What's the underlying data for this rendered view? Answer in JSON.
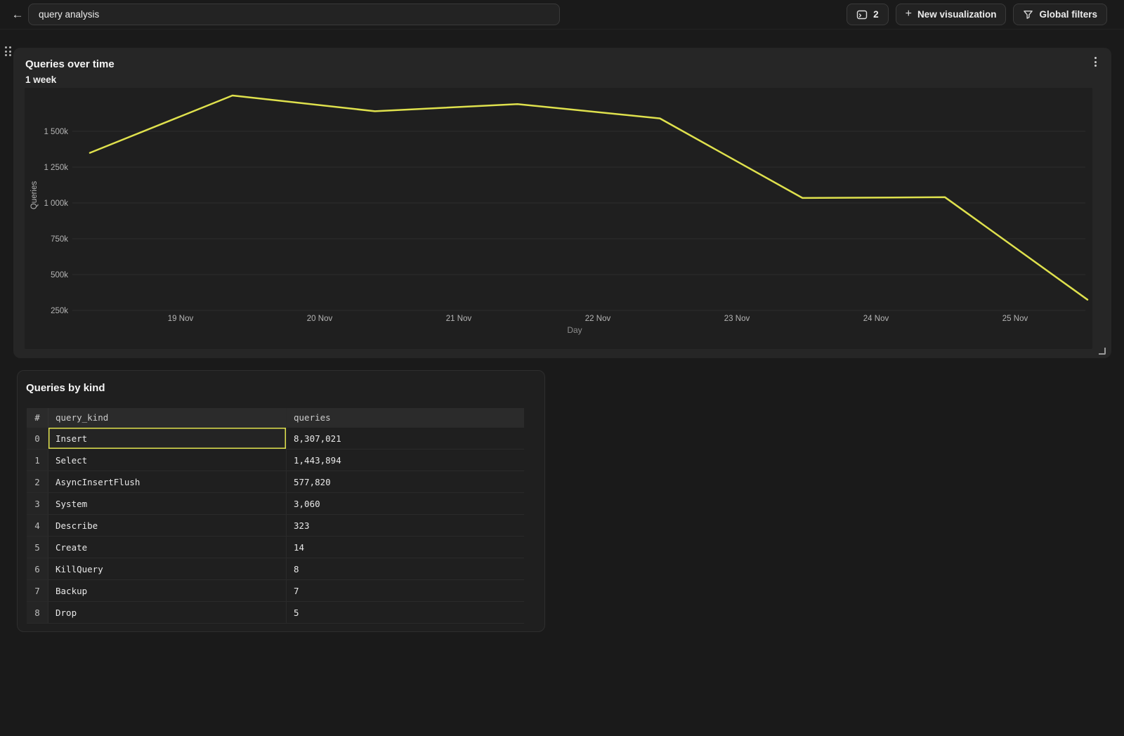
{
  "topbar": {
    "back_icon": "←",
    "title_value": "query analysis",
    "pages_count": "2",
    "new_visualization_label": "New visualization",
    "plus_glyph": "+",
    "global_filters_label": "Global filters"
  },
  "colors": {
    "accent_line": "#dfe14d",
    "page_bg": "#1a1a1a",
    "panel_bg": "#262626",
    "plot_bg": "#1f1f1f",
    "grid": "#2d2d2d",
    "tick_text": "#b5b5b5",
    "axis_label_text": "#8d8d8d"
  },
  "icons": {
    "pages_icon": "terminal-pages-icon",
    "filter_icon": "funnel-icon",
    "drag_icon": "drag-handle-dots",
    "menu_icon": "kebab-menu"
  },
  "chart_panel": {
    "title": "Queries over time",
    "subtitle": "1 week"
  },
  "chart_data": [
    {
      "type": "line",
      "title": "Queries over time",
      "subtitle": "1 week",
      "xlabel": "Day",
      "ylabel": "Queries",
      "x_tick_labels": [
        "19 Nov",
        "20 Nov",
        "21 Nov",
        "22 Nov",
        "23 Nov",
        "24 Nov",
        "25 Nov"
      ],
      "y_tick_labels": [
        "1 500k",
        "1 250k",
        "1 000k",
        "750k",
        "500k",
        "250k"
      ],
      "y_tick_values": [
        1500000,
        1250000,
        1000000,
        750000,
        500000,
        250000
      ],
      "ylim": [
        0,
        1800000
      ],
      "grid": "horizontal-only",
      "legend": "none",
      "series": [
        {
          "name": "Queries",
          "color": "#dfe14d",
          "x": [
            "18 Nov",
            "19 Nov",
            "20 Nov",
            "21 Nov",
            "22 Nov",
            "23 Nov",
            "24 Nov",
            "25 Nov"
          ],
          "values": [
            1350000,
            1750000,
            1640000,
            1690000,
            1590000,
            1035000,
            1040000,
            325000
          ]
        }
      ]
    },
    {
      "type": "table",
      "title": "Queries by kind",
      "columns": [
        "#",
        "query_kind",
        "queries"
      ],
      "rows": [
        {
          "index": "0",
          "query_kind": "Insert",
          "queries": "8,307,021",
          "selected": true
        },
        {
          "index": "1",
          "query_kind": "Select",
          "queries": "1,443,894",
          "selected": false
        },
        {
          "index": "2",
          "query_kind": "AsyncInsertFlush",
          "queries": "577,820",
          "selected": false
        },
        {
          "index": "3",
          "query_kind": "System",
          "queries": "3,060",
          "selected": false
        },
        {
          "index": "4",
          "query_kind": "Describe",
          "queries": "323",
          "selected": false
        },
        {
          "index": "5",
          "query_kind": "Create",
          "queries": "14",
          "selected": false
        },
        {
          "index": "6",
          "query_kind": "KillQuery",
          "queries": "8",
          "selected": false
        },
        {
          "index": "7",
          "query_kind": "Backup",
          "queries": "7",
          "selected": false
        },
        {
          "index": "8",
          "query_kind": "Drop",
          "queries": "5",
          "selected": false
        }
      ]
    }
  ],
  "table_panel": {
    "title": "Queries by kind"
  }
}
